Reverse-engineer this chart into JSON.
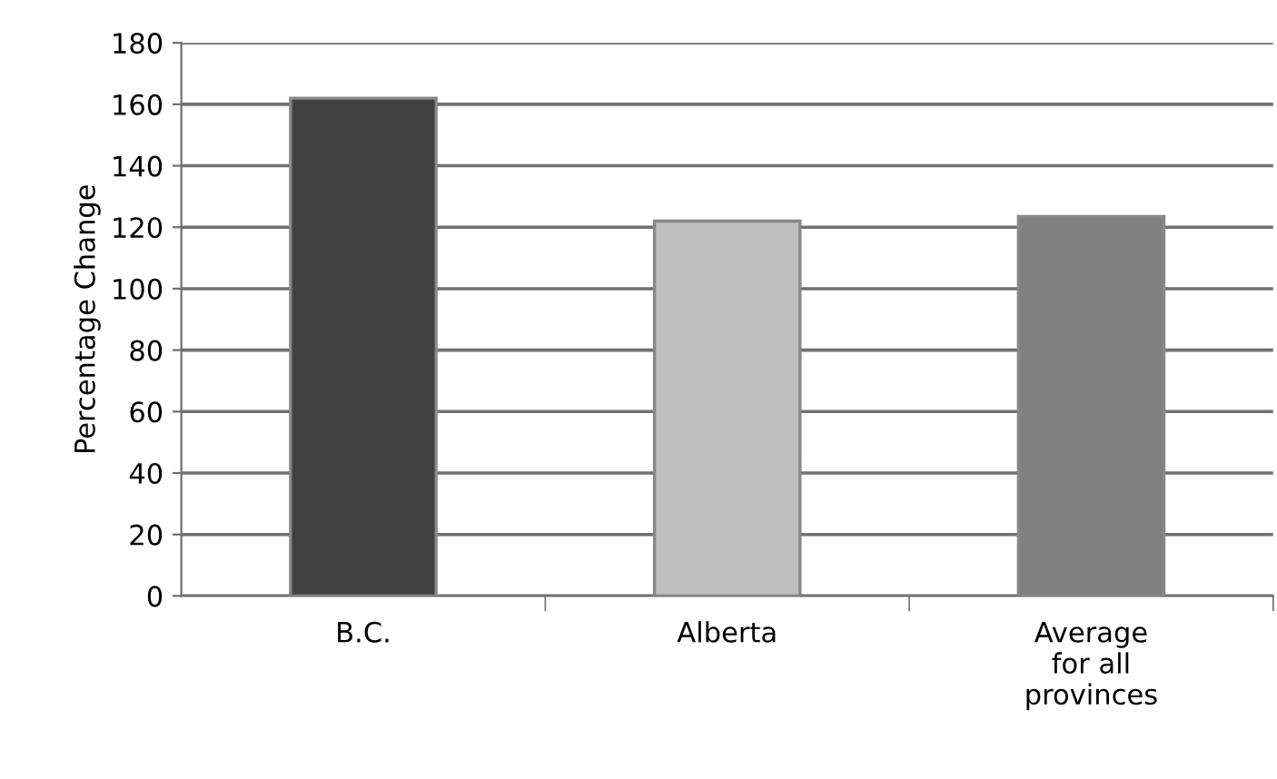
{
  "chart_data": {
    "type": "bar",
    "ylabel": "Percentage Change",
    "categories": [
      "B.C.",
      "Alberta",
      "Average\nfor all\nprovinces"
    ],
    "values": [
      162,
      122,
      123.5
    ],
    "colors": [
      "#404040",
      "#bfbfbf",
      "#808080"
    ],
    "ylim": [
      0,
      180
    ],
    "yticks": [
      0,
      20,
      40,
      60,
      80,
      100,
      120,
      140,
      160,
      180
    ],
    "grid": "y",
    "legend": false
  }
}
